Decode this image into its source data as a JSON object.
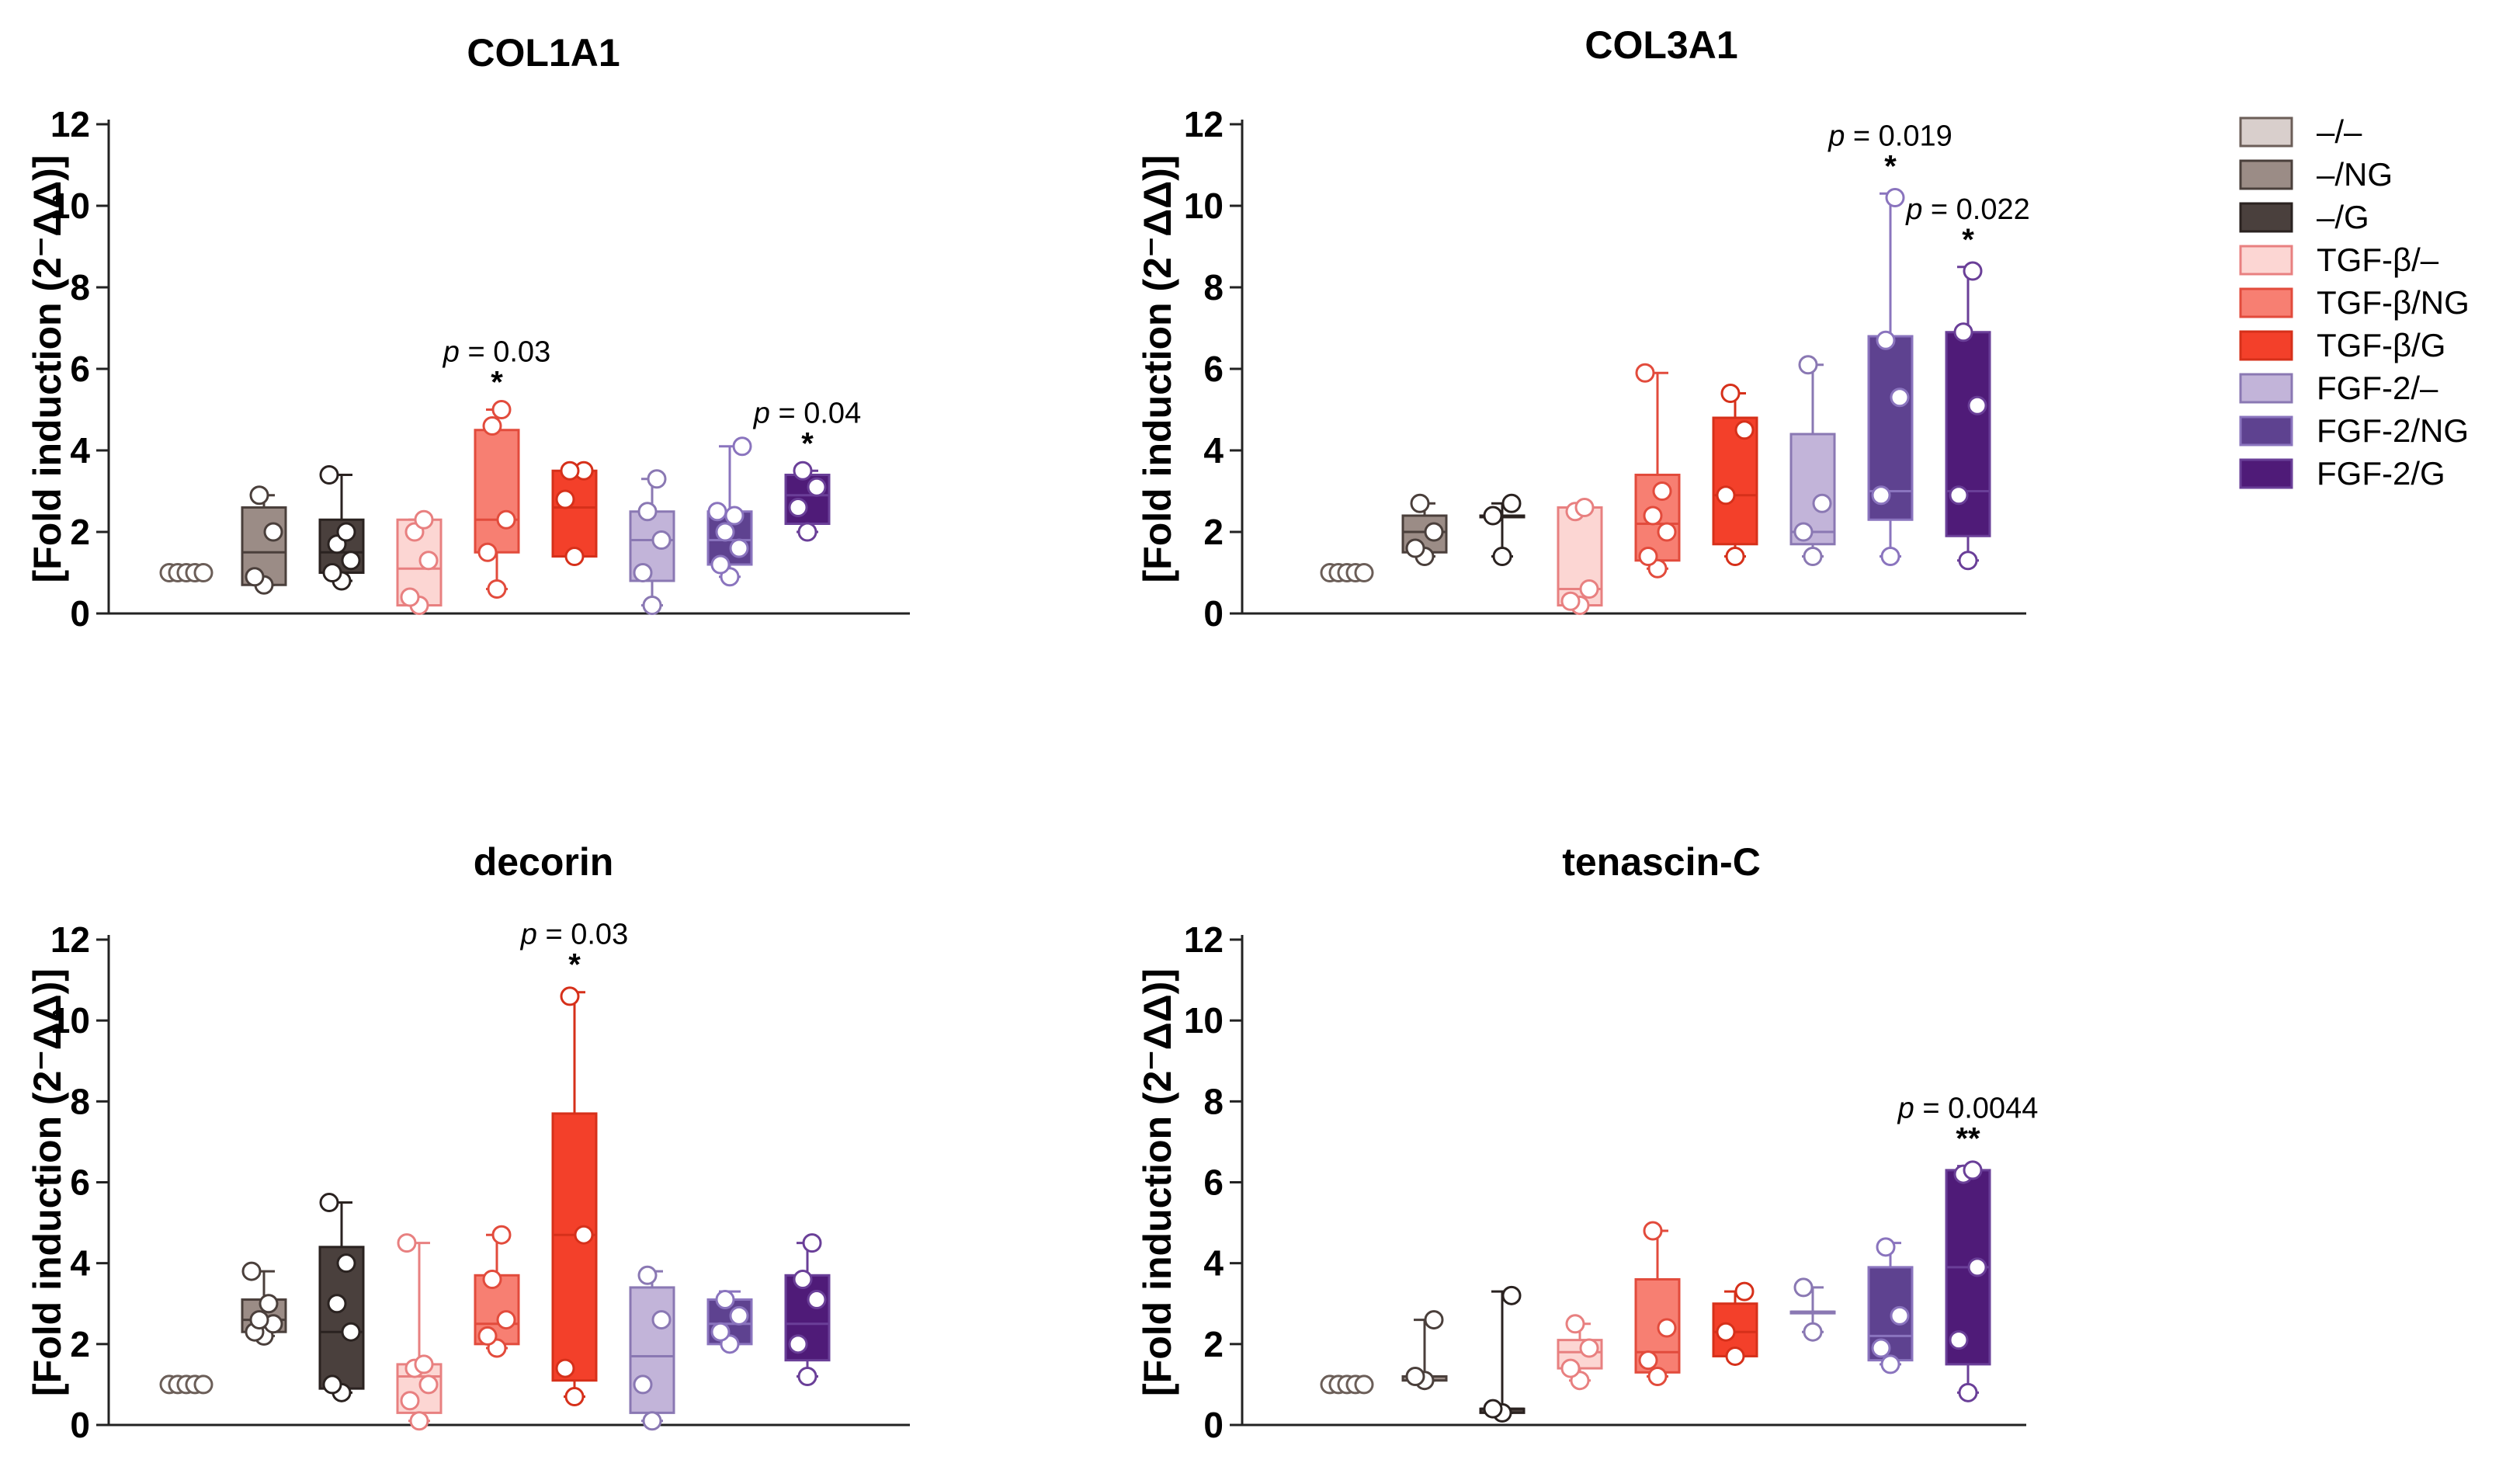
{
  "figure_title": "",
  "legend": {
    "groups": [
      {
        "label": "–/–",
        "fill": "#d9cfcc",
        "stroke": "#6b5e58"
      },
      {
        "label": "–/NG",
        "fill": "#9b8c86",
        "stroke": "#4a3f3b"
      },
      {
        "label": "–/G",
        "fill": "#4a403d",
        "stroke": "#2a2220"
      },
      {
        "label": "TGF-β/–",
        "fill": "#fcd6d3",
        "stroke": "#e88080"
      },
      {
        "label": "TGF-β/NG",
        "fill": "#f77f72",
        "stroke": "#e24b3c"
      },
      {
        "label": "TGF-β/G",
        "fill": "#f3402a",
        "stroke": "#d6301a"
      },
      {
        "label": "FGF-2/–",
        "fill": "#c2b4d9",
        "stroke": "#8a78b3"
      },
      {
        "label": "FGF-2/NG",
        "fill": "#5e4290",
        "stroke": "#8a74be"
      },
      {
        "label": "FGF-2/G",
        "fill": "#4f1b78",
        "stroke": "#6a3f98"
      }
    ]
  },
  "chart_data": [
    {
      "type": "box",
      "title": "COL1A1",
      "ylabel": "[Fold induction (2⁻ΔΔ)]",
      "ylim": [
        0,
        12
      ],
      "yticks": [
        0,
        2,
        4,
        6,
        8,
        10,
        12
      ],
      "boxes": [
        {
          "min": 1.0,
          "q1": 1.0,
          "median": 1.0,
          "q3": 1.0,
          "max": 1.0,
          "points": [
            1.0,
            1.0,
            1.0,
            1.0,
            1.0
          ]
        },
        {
          "min": 0.7,
          "q1": 0.7,
          "median": 1.5,
          "q3": 2.6,
          "max": 2.9,
          "points": [
            0.7,
            0.9,
            2.0,
            2.9
          ]
        },
        {
          "min": 0.8,
          "q1": 1.0,
          "median": 1.5,
          "q3": 2.3,
          "max": 3.4,
          "points": [
            0.8,
            1.0,
            1.3,
            1.7,
            2.0,
            3.4
          ]
        },
        {
          "min": 0.2,
          "q1": 0.2,
          "median": 1.1,
          "q3": 2.3,
          "max": 2.3,
          "points": [
            0.2,
            0.4,
            1.3,
            2.0,
            2.3
          ]
        },
        {
          "min": 0.6,
          "q1": 1.5,
          "median": 2.3,
          "q3": 4.5,
          "max": 5.0,
          "points": [
            0.6,
            1.5,
            2.3,
            4.6,
            5.0
          ]
        },
        {
          "min": 1.4,
          "q1": 1.4,
          "median": 2.6,
          "q3": 3.5,
          "max": 3.5,
          "points": [
            1.4,
            2.8,
            3.5,
            3.5
          ]
        },
        {
          "min": 0.2,
          "q1": 0.8,
          "median": 1.8,
          "q3": 2.5,
          "max": 3.3,
          "points": [
            0.2,
            1.0,
            1.8,
            2.5,
            3.3
          ]
        },
        {
          "min": 0.9,
          "q1": 1.2,
          "median": 1.8,
          "q3": 2.5,
          "max": 4.1,
          "points": [
            0.9,
            1.2,
            1.6,
            2.0,
            2.4,
            2.5,
            4.1
          ]
        },
        {
          "min": 2.0,
          "q1": 2.2,
          "median": 2.9,
          "q3": 3.4,
          "max": 3.5,
          "points": [
            2.0,
            2.6,
            3.1,
            3.5
          ]
        }
      ],
      "annotations": [
        {
          "group": 4,
          "p_label": "p",
          "p_value": " = 0.03",
          "stars": "*",
          "y": 5.0
        },
        {
          "group": 8,
          "p_label": "p",
          "p_value": " = 0.04",
          "stars": "*",
          "y": 3.5
        }
      ]
    },
    {
      "type": "box",
      "title": "COL3A1",
      "ylabel": "[Fold induction (2⁻ΔΔ)]",
      "ylim": [
        0,
        12
      ],
      "yticks": [
        0,
        2,
        4,
        6,
        8,
        10,
        12
      ],
      "boxes": [
        {
          "min": 1.0,
          "q1": 1.0,
          "median": 1.0,
          "q3": 1.0,
          "max": 1.0,
          "points": [
            1.0,
            1.0,
            1.0,
            1.0,
            1.0
          ]
        },
        {
          "min": 1.4,
          "q1": 1.5,
          "median": 2.0,
          "q3": 2.4,
          "max": 2.7,
          "points": [
            1.4,
            1.6,
            2.0,
            2.7
          ]
        },
        {
          "min": 1.4,
          "q1": 2.4,
          "median": 2.4,
          "q3": 2.4,
          "max": 2.7,
          "points": [
            1.4,
            2.4,
            2.7
          ]
        },
        {
          "min": 0.2,
          "q1": 0.2,
          "median": 0.6,
          "q3": 2.6,
          "max": 2.6,
          "points": [
            0.2,
            0.3,
            0.6,
            2.5,
            2.6
          ]
        },
        {
          "min": 1.1,
          "q1": 1.3,
          "median": 2.2,
          "q3": 3.4,
          "max": 5.9,
          "points": [
            1.1,
            1.4,
            2.0,
            2.4,
            3.0,
            5.9
          ]
        },
        {
          "min": 1.4,
          "q1": 1.7,
          "median": 2.9,
          "q3": 4.8,
          "max": 5.4,
          "points": [
            1.4,
            2.9,
            4.5,
            5.4
          ]
        },
        {
          "min": 1.4,
          "q1": 1.7,
          "median": 2.0,
          "q3": 4.4,
          "max": 6.1,
          "points": [
            1.4,
            2.0,
            2.7,
            6.1
          ]
        },
        {
          "min": 1.4,
          "q1": 2.3,
          "median": 3.0,
          "q3": 6.8,
          "max": 10.3,
          "points": [
            1.4,
            2.9,
            5.3,
            6.7,
            10.2
          ]
        },
        {
          "min": 1.3,
          "q1": 1.9,
          "median": 3.0,
          "q3": 6.9,
          "max": 8.5,
          "points": [
            1.3,
            2.9,
            5.1,
            6.9,
            8.4
          ]
        }
      ],
      "annotations": [
        {
          "group": 7,
          "p_label": "p",
          "p_value": " = 0.019",
          "stars": "*",
          "y": 10.3
        },
        {
          "group": 8,
          "p_label": "p",
          "p_value": " = 0.022",
          "stars": "*",
          "y": 8.5
        }
      ]
    },
    {
      "type": "box",
      "title": "decorin",
      "ylabel": "[Fold induction (2⁻ΔΔ)]",
      "ylim": [
        0,
        12
      ],
      "yticks": [
        0,
        2,
        4,
        6,
        8,
        10,
        12
      ],
      "boxes": [
        {
          "min": 1.0,
          "q1": 1.0,
          "median": 1.0,
          "q3": 1.0,
          "max": 1.0,
          "points": [
            1.0,
            1.0,
            1.0,
            1.0,
            1.0
          ]
        },
        {
          "min": 2.2,
          "q1": 2.3,
          "median": 2.6,
          "q3": 3.1,
          "max": 3.8,
          "points": [
            2.2,
            2.3,
            2.5,
            2.6,
            3.0,
            3.8
          ]
        },
        {
          "min": 0.8,
          "q1": 0.9,
          "median": 2.3,
          "q3": 4.4,
          "max": 5.5,
          "points": [
            0.8,
            1.0,
            2.3,
            3.0,
            4.0,
            5.5
          ]
        },
        {
          "min": 0.1,
          "q1": 0.3,
          "median": 1.2,
          "q3": 1.5,
          "max": 4.5,
          "points": [
            0.1,
            0.6,
            1.0,
            1.4,
            1.5,
            4.5
          ]
        },
        {
          "min": 1.9,
          "q1": 2.0,
          "median": 2.5,
          "q3": 3.7,
          "max": 4.7,
          "points": [
            1.9,
            2.2,
            2.6,
            3.6,
            4.7
          ]
        },
        {
          "min": 0.7,
          "q1": 1.1,
          "median": 4.7,
          "q3": 7.7,
          "max": 10.7,
          "points": [
            0.7,
            1.4,
            4.7,
            10.6
          ]
        },
        {
          "min": 0.1,
          "q1": 0.3,
          "median": 1.7,
          "q3": 3.4,
          "max": 3.8,
          "points": [
            0.1,
            1.0,
            2.6,
            3.7
          ]
        },
        {
          "min": 2.0,
          "q1": 2.0,
          "median": 2.5,
          "q3": 3.1,
          "max": 3.3,
          "points": [
            2.0,
            2.3,
            2.7,
            3.1
          ]
        },
        {
          "min": 1.2,
          "q1": 1.6,
          "median": 2.5,
          "q3": 3.7,
          "max": 4.5,
          "points": [
            1.2,
            2.0,
            3.1,
            3.6,
            4.5
          ]
        }
      ],
      "annotations": [
        {
          "group": 5,
          "p_label": "p",
          "p_value": " = 0.03",
          "stars": "*",
          "y": 10.7
        }
      ]
    },
    {
      "type": "box",
      "title": "tenascin-C",
      "ylabel": "[Fold induction (2⁻ΔΔ)]",
      "ylim": [
        0,
        12
      ],
      "yticks": [
        0,
        2,
        4,
        6,
        8,
        10,
        12
      ],
      "boxes": [
        {
          "min": 1.0,
          "q1": 1.0,
          "median": 1.0,
          "q3": 1.0,
          "max": 1.0,
          "points": [
            1.0,
            1.0,
            1.0,
            1.0,
            1.0
          ]
        },
        {
          "min": 1.1,
          "q1": 1.1,
          "median": 1.2,
          "q3": 1.2,
          "max": 2.6,
          "points": [
            1.1,
            1.2,
            2.6
          ]
        },
        {
          "min": 0.3,
          "q1": 0.3,
          "median": 0.4,
          "q3": 0.4,
          "max": 3.3,
          "points": [
            0.3,
            0.4,
            3.2
          ]
        },
        {
          "min": 1.1,
          "q1": 1.4,
          "median": 1.8,
          "q3": 2.1,
          "max": 2.5,
          "points": [
            1.1,
            1.4,
            1.9,
            2.5
          ]
        },
        {
          "min": 1.2,
          "q1": 1.3,
          "median": 1.8,
          "q3": 3.6,
          "max": 4.8,
          "points": [
            1.2,
            1.6,
            2.4,
            4.8
          ]
        },
        {
          "min": 1.7,
          "q1": 1.7,
          "median": 2.3,
          "q3": 3.0,
          "max": 3.3,
          "points": [
            1.7,
            2.3,
            3.3
          ]
        },
        {
          "min": 2.3,
          "q1": 2.8,
          "median": 2.8,
          "q3": 2.8,
          "max": 3.4,
          "points": [
            2.3,
            3.4
          ]
        },
        {
          "min": 1.5,
          "q1": 1.6,
          "median": 2.2,
          "q3": 3.9,
          "max": 4.5,
          "points": [
            1.5,
            1.9,
            2.7,
            4.4
          ]
        },
        {
          "min": 0.8,
          "q1": 1.5,
          "median": 3.9,
          "q3": 6.3,
          "max": 6.4,
          "points": [
            0.8,
            2.1,
            3.9,
            6.2,
            6.3
          ]
        }
      ],
      "annotations": [
        {
          "group": 8,
          "p_label": "p",
          "p_value": " = 0.0044",
          "stars": "**",
          "y": 6.4
        }
      ]
    }
  ]
}
